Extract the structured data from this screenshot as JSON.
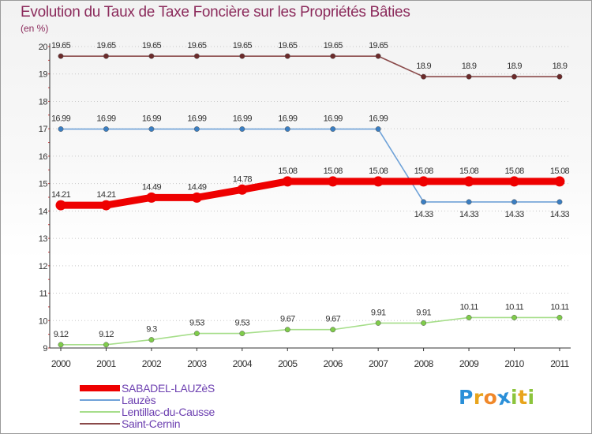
{
  "title": "Evolution du Taux de Taxe Foncière sur les Propriétés Bâties",
  "subtitle": "(en %)",
  "logo": {
    "text": "Proxiti",
    "letters": [
      "P",
      "r",
      "o",
      "x",
      "i",
      "t",
      "i"
    ],
    "colors": [
      "#2a8fd8",
      "#e8a41c",
      "#f0882a",
      "#2a8fd8",
      "#8cc43c",
      "#e8a41c",
      "#8cc43c"
    ]
  },
  "chart_data": {
    "type": "line",
    "title": "Evolution du Taux de Taxe Foncière sur les Propriétés Bâties",
    "subtitle": "(en %)",
    "xlabel": "",
    "ylabel": "",
    "x": [
      "2000",
      "2001",
      "2002",
      "2003",
      "2004",
      "2005",
      "2006",
      "2007",
      "2008",
      "2009",
      "2010",
      "2011"
    ],
    "y_ticks": [
      "9",
      "10",
      "11",
      "12",
      "13",
      "14",
      "15",
      "16",
      "17",
      "18",
      "19",
      "20"
    ],
    "ylim": [
      9,
      20
    ],
    "grid": "horizontal dotted",
    "legend_placement": "bottom-left",
    "series": [
      {
        "name": "SABADEL-LAUZèS",
        "color": "#ee0000",
        "point_color": "#ee0000",
        "emphasis": true,
        "values": [
          14.21,
          14.21,
          14.49,
          14.49,
          14.78,
          15.08,
          15.08,
          15.08,
          15.08,
          15.08,
          15.08,
          15.08
        ],
        "labels": [
          "14.21",
          "14.21",
          "14.49",
          "14.49",
          "14.78",
          "15.08",
          "15.08",
          "15.08",
          "15.08",
          "15.08",
          "15.08",
          "15.08"
        ],
        "label_side": "above"
      },
      {
        "name": "Lauzès",
        "color": "#6fa2d8",
        "point_color": "#3a7ec2",
        "emphasis": false,
        "values": [
          16.99,
          16.99,
          16.99,
          16.99,
          16.99,
          16.99,
          16.99,
          16.99,
          14.33,
          14.33,
          14.33,
          14.33
        ],
        "labels": [
          "16.99",
          "16.99",
          "16.99",
          "16.99",
          "16.99",
          "16.99",
          "16.99",
          "16.99",
          "14.33",
          "14.33",
          "14.33",
          "14.33"
        ],
        "label_side": [
          "above",
          "above",
          "above",
          "above",
          "above",
          "above",
          "above",
          "above",
          "below",
          "below",
          "below",
          "below"
        ]
      },
      {
        "name": "Lentillac-du-Causse",
        "color": "#a6de8a",
        "point_color": "#7fcc4a",
        "emphasis": false,
        "values": [
          9.12,
          9.12,
          9.3,
          9.53,
          9.53,
          9.67,
          9.67,
          9.91,
          9.91,
          10.11,
          10.11,
          10.11
        ],
        "labels": [
          "9.12",
          "9.12",
          "9.3",
          "9.53",
          "9.53",
          "9.67",
          "9.67",
          "9.91",
          "9.91",
          "10.11",
          "10.11",
          "10.11"
        ],
        "label_side": "above"
      },
      {
        "name": "Saint-Cernin",
        "color": "#8a4a4a",
        "point_color": "#6b2a2a",
        "emphasis": false,
        "values": [
          19.65,
          19.65,
          19.65,
          19.65,
          19.65,
          19.65,
          19.65,
          19.65,
          18.9,
          18.9,
          18.9,
          18.9
        ],
        "labels": [
          "19.65",
          "19.65",
          "19.65",
          "19.65",
          "19.65",
          "19.65",
          "19.65",
          "19.65",
          "18.9",
          "18.9",
          "18.9",
          "18.9"
        ],
        "label_side": "above"
      }
    ]
  }
}
